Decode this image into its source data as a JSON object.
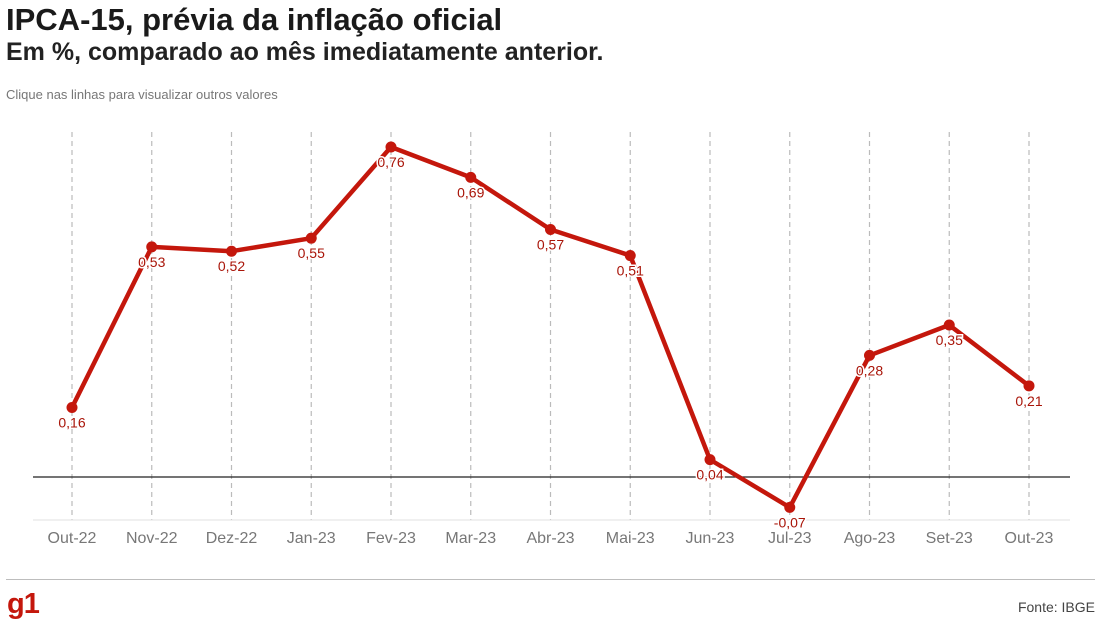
{
  "header": {
    "title": "IPCA-15, prévia da inflação oficial",
    "subtitle": "Em %, comparado ao mês imediatamente anterior.",
    "hint": "Clique nas linhas para visualizar outros valores"
  },
  "footer": {
    "logo": "g1",
    "source": "Fonte: IBGE"
  },
  "colors": {
    "line": "#c4170c",
    "label": "#a91509",
    "grid": "#bbbbbb",
    "zero_line": "#222222",
    "axis_text": "#777777"
  },
  "chart_data": {
    "type": "line",
    "categories": [
      "Out-22",
      "Nov-22",
      "Dez-22",
      "Jan-23",
      "Fev-23",
      "Mar-23",
      "Abr-23",
      "Mai-23",
      "Jun-23",
      "Jul-23",
      "Ago-23",
      "Set-23",
      "Out-23"
    ],
    "series": [
      {
        "values": [
          0.16,
          0.53,
          0.52,
          0.55,
          0.76,
          0.69,
          0.57,
          0.51,
          0.04,
          -0.07,
          0.28,
          0.35,
          0.21
        ],
        "labels": [
          "0,16",
          "0,53",
          "0,52",
          "0,55",
          "0,76",
          "0,69",
          "0,57",
          "0,51",
          "0,04",
          "-0,07",
          "0,28",
          "0,35",
          "0,21"
        ]
      }
    ],
    "ylim": [
      -0.1,
      0.76
    ],
    "grid": "vertical dashed",
    "zero_line": true
  }
}
